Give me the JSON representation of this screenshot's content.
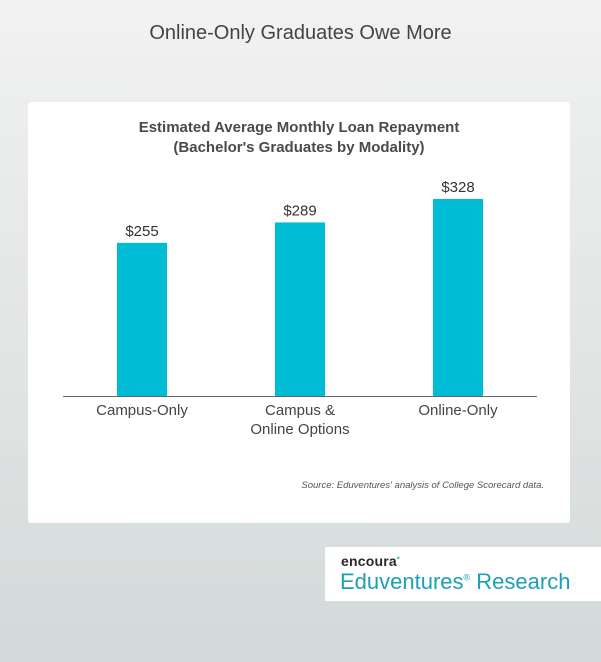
{
  "page": {
    "title": "Online-Only Graduates Owe More"
  },
  "chart": {
    "title_line1": "Estimated Average Monthly Loan Repayment",
    "title_line2": "(Bachelor's Graduates by Modality)",
    "source": "Source: Eduventures' analysis of College Scorecard data.",
    "bar_color": "#00bcd4",
    "axis_color": "#666666"
  },
  "brand": {
    "top": "encoura",
    "top_mark": "•",
    "bottom_name": "Eduventures",
    "bottom_reg": "®",
    "bottom_suffix": "Research"
  },
  "chart_data": {
    "type": "bar",
    "title": "Estimated Average Monthly Loan Repayment (Bachelor's Graduates by Modality)",
    "categories": [
      [
        "Campus-Only"
      ],
      [
        "Campus &",
        "Online Options"
      ],
      [
        "Online-Only"
      ]
    ],
    "values": [
      255,
      289,
      328
    ],
    "value_labels": [
      "$255",
      "$289",
      "$328"
    ],
    "xlabel": "",
    "ylabel": "",
    "ylim": [
      0,
      328
    ],
    "grid": false,
    "legend": "none"
  }
}
